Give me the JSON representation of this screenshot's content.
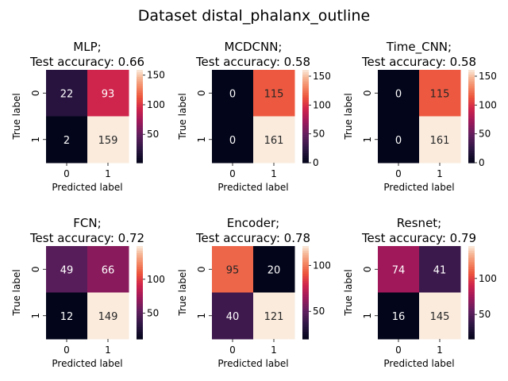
{
  "suptitle": "Dataset distal_phalanx_outline",
  "xlabel": "Predicted label",
  "ylabel": "True label",
  "chart_data": [
    {
      "type": "heatmap",
      "title_line1": "MLP;",
      "title_line2": "Test accuracy: 0.66",
      "x_categories": [
        "0",
        "1"
      ],
      "y_categories": [
        "0",
        "1"
      ],
      "values": [
        [
          22,
          93
        ],
        [
          2,
          159
        ]
      ],
      "vmin": 2,
      "vmax": 159,
      "colorbar_ticks": [
        50,
        100,
        150
      ],
      "colormap": "rocket"
    },
    {
      "type": "heatmap",
      "title_line1": "MCDCNN;",
      "title_line2": "Test accuracy: 0.58",
      "x_categories": [
        "0",
        "1"
      ],
      "y_categories": [
        "0",
        "1"
      ],
      "values": [
        [
          0,
          115
        ],
        [
          0,
          161
        ]
      ],
      "vmin": 0,
      "vmax": 161,
      "colorbar_ticks": [
        0,
        50,
        100,
        150
      ],
      "colormap": "rocket"
    },
    {
      "type": "heatmap",
      "title_line1": "Time_CNN;",
      "title_line2": "Test accuracy: 0.58",
      "x_categories": [
        "0",
        "1"
      ],
      "y_categories": [
        "0",
        "1"
      ],
      "values": [
        [
          0,
          115
        ],
        [
          0,
          161
        ]
      ],
      "vmin": 0,
      "vmax": 161,
      "colorbar_ticks": [
        0,
        50,
        100,
        150
      ],
      "colormap": "rocket"
    },
    {
      "type": "heatmap",
      "title_line1": "FCN;",
      "title_line2": "Test accuracy: 0.72",
      "x_categories": [
        "0",
        "1"
      ],
      "y_categories": [
        "0",
        "1"
      ],
      "values": [
        [
          49,
          66
        ],
        [
          12,
          149
        ]
      ],
      "vmin": 12,
      "vmax": 149,
      "colorbar_ticks": [
        50,
        100
      ],
      "colormap": "rocket"
    },
    {
      "type": "heatmap",
      "title_line1": "Encoder;",
      "title_line2": "Test accuracy: 0.78",
      "x_categories": [
        "0",
        "1"
      ],
      "y_categories": [
        "0",
        "1"
      ],
      "values": [
        [
          95,
          20
        ],
        [
          40,
          121
        ]
      ],
      "vmin": 20,
      "vmax": 121,
      "colorbar_ticks": [
        50,
        100
      ],
      "colormap": "rocket"
    },
    {
      "type": "heatmap",
      "title_line1": "Resnet;",
      "title_line2": "Test accuracy: 0.79",
      "x_categories": [
        "0",
        "1"
      ],
      "y_categories": [
        "0",
        "1"
      ],
      "values": [
        [
          74,
          41
        ],
        [
          16,
          145
        ]
      ],
      "vmin": 16,
      "vmax": 145,
      "colorbar_ticks": [
        50,
        100
      ],
      "colormap": "rocket"
    }
  ]
}
